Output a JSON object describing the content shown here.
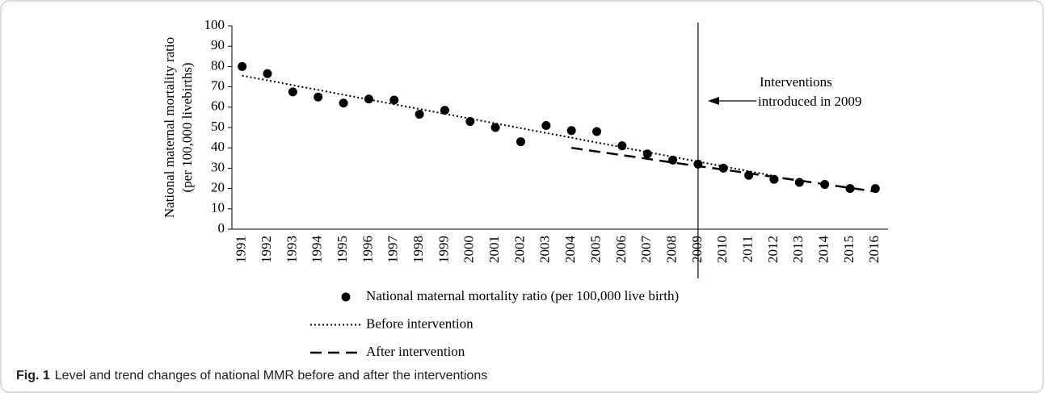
{
  "chart_data": {
    "type": "line",
    "ylabel": [
      "National maternal mortality ratio",
      "(per 100,000 livebirths)"
    ],
    "categories": [
      "1991",
      "1992",
      "1993",
      "1994",
      "1995",
      "1996",
      "1997",
      "1998",
      "1999",
      "2000",
      "2001",
      "2002",
      "2003",
      "2004",
      "2005",
      "2006",
      "2007",
      "2008",
      "2009",
      "2010",
      "2011",
      "2012",
      "2013",
      "2014",
      "2015",
      "2016"
    ],
    "series": [
      {
        "name": "National maternal mortality ratio (per 100,000 live birth)",
        "color": "#000000",
        "style": "markers",
        "values": [
          80,
          76.5,
          67.5,
          65,
          62,
          64,
          63.5,
          56.5,
          58.5,
          53,
          50,
          43,
          51,
          48.5,
          48,
          41,
          37,
          34,
          32,
          30,
          26.5,
          24.5,
          23,
          22,
          20,
          20
        ]
      },
      {
        "name": "Before intervention",
        "color": "#000000",
        "style": "dotted",
        "values": [
          75.5,
          73.2,
          70.8,
          68.5,
          66.1,
          63.8,
          61.4,
          59.1,
          56.7,
          54.4,
          52,
          49.7,
          47.3,
          45,
          42.6,
          40.3,
          37.9,
          35.6,
          33.2,
          30.9,
          28.5,
          26.2,
          null,
          null,
          null,
          null
        ]
      },
      {
        "name": "After intervention",
        "color": "#000000",
        "style": "dashed",
        "values": [
          null,
          null,
          null,
          null,
          null,
          null,
          null,
          null,
          null,
          null,
          null,
          null,
          null,
          40,
          38.2,
          36.4,
          34.6,
          32.8,
          31.0,
          29.3,
          27.5,
          25.7,
          23.9,
          22.1,
          20.3,
          18.5
        ]
      }
    ],
    "ylim": [
      0,
      100
    ],
    "yticks": [
      0,
      10,
      20,
      30,
      40,
      50,
      60,
      70,
      80,
      90,
      100
    ],
    "grid": false,
    "annotation": {
      "lines": [
        "Interventions",
        "introduced in 2009"
      ],
      "category": "2009"
    }
  },
  "caption": {
    "label": "Fig. 1",
    "text": "Level and trend changes of national MMR before and after the interventions"
  }
}
